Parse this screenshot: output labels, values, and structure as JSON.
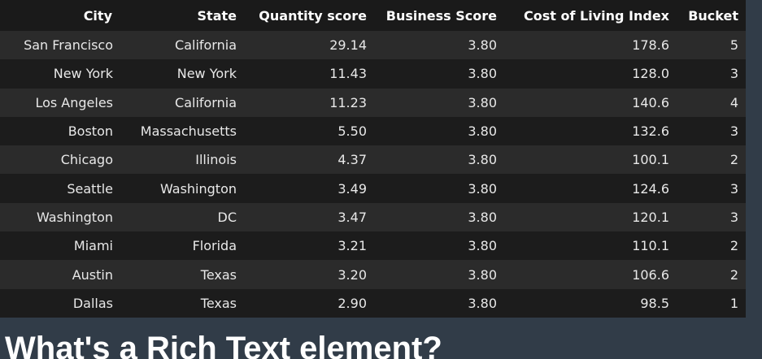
{
  "table": {
    "headers": [
      "City",
      "State",
      "Quantity score",
      "Business Score",
      "Cost of Living Index",
      "Bucket"
    ],
    "rows": [
      [
        "San Francisco",
        "California",
        "29.14",
        "3.80",
        "178.6",
        "5"
      ],
      [
        "New York",
        "New York",
        "11.43",
        "3.80",
        "128.0",
        "3"
      ],
      [
        "Los Angeles",
        "California",
        "11.23",
        "3.80",
        "140.6",
        "4"
      ],
      [
        "Boston",
        "Massachusetts",
        "5.50",
        "3.80",
        "132.6",
        "3"
      ],
      [
        "Chicago",
        "Illinois",
        "4.37",
        "3.80",
        "100.1",
        "2"
      ],
      [
        "Seattle",
        "Washington",
        "3.49",
        "3.80",
        "124.6",
        "3"
      ],
      [
        "Washington",
        "DC",
        "3.47",
        "3.80",
        "120.1",
        "3"
      ],
      [
        "Miami",
        "Florida",
        "3.21",
        "3.80",
        "110.1",
        "2"
      ],
      [
        "Austin",
        "Texas",
        "3.20",
        "3.80",
        "106.6",
        "2"
      ],
      [
        "Dallas",
        "Texas",
        "2.90",
        "3.80",
        "98.5",
        "1"
      ]
    ]
  },
  "heading": {
    "text": "What's a Rich Text element?"
  },
  "colors": {
    "page_background": "#313c48",
    "table_background": "#1a1a1a",
    "row_odd": "#2b2b2b",
    "row_even": "#1c1c1c",
    "text": "#e8e8e8"
  }
}
